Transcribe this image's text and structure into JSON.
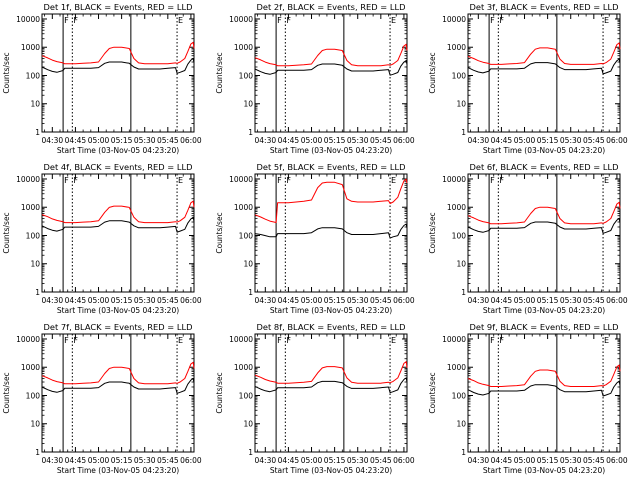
{
  "figure": {
    "time_labels": [
      "04:30",
      "04:45",
      "05:00",
      "05:15",
      "05:30",
      "05:45",
      "06:00"
    ],
    "time_minutes": [
      0,
      15,
      30,
      45,
      60,
      75,
      90
    ],
    "y_ticks": [
      1,
      10,
      100,
      1000,
      10000
    ],
    "y_tick_labels": [
      "1",
      "10",
      "100",
      "1000",
      "10000"
    ],
    "ylabel": "Counts/sec",
    "xlabel": "Start Time (03-Nov-05 04:23:20)",
    "solid_markers_min": [
      7,
      51
    ],
    "dotted_markers_min": [
      13,
      81
    ],
    "flag_markers": [
      {
        "min": 7,
        "label": "F"
      },
      {
        "min": 13,
        "label": "F"
      },
      {
        "min": 81,
        "label": "E"
      }
    ],
    "colors": {
      "events": "#000000",
      "lld": "#ff0000",
      "axes": "#000000"
    }
  },
  "chart_data": [
    {
      "type": "line",
      "title": "Det 1f, BLACK = Events, RED = LLD",
      "scale": 1.0,
      "xlim": [
        -6.7,
        92
      ],
      "ylim": [
        1,
        15000
      ],
      "yscale": "log",
      "x": [
        -6.7,
        -3,
        0,
        3,
        7,
        8,
        10,
        15,
        20,
        25,
        30,
        34,
        37,
        40,
        45,
        50,
        53,
        56,
        60,
        65,
        70,
        75,
        80,
        81,
        83,
        86,
        88,
        90,
        91.5,
        92
      ],
      "series": [
        {
          "name": "Events",
          "values": [
            200,
            160,
            140,
            130,
            150,
            180,
            180,
            180,
            180,
            180,
            190,
            270,
            300,
            300,
            300,
            270,
            200,
            170,
            170,
            170,
            170,
            180,
            190,
            120,
            130,
            150,
            250,
            350,
            400,
            280
          ]
        },
        {
          "name": "LLD",
          "values": [
            500,
            420,
            350,
            310,
            280,
            260,
            260,
            260,
            270,
            280,
            300,
            600,
            900,
            1000,
            1000,
            900,
            400,
            280,
            260,
            260,
            260,
            260,
            280,
            270,
            300,
            400,
            700,
            1300,
            1500,
            900
          ]
        }
      ]
    },
    {
      "type": "line",
      "title": "Det 2f, BLACK = Events, RED = LLD",
      "scale": 0.85,
      "xlim": [
        -6.7,
        92
      ],
      "ylim": [
        1,
        15000
      ],
      "yscale": "log",
      "x": [
        -6.7,
        -3,
        0,
        3,
        7,
        8,
        10,
        15,
        20,
        25,
        30,
        34,
        37,
        40,
        45,
        50,
        53,
        56,
        60,
        65,
        70,
        75,
        80,
        81,
        83,
        86,
        88,
        90,
        91.5,
        92
      ],
      "series": [
        {
          "name": "Events",
          "values": [
            200,
            160,
            140,
            130,
            150,
            180,
            180,
            180,
            180,
            180,
            190,
            270,
            300,
            300,
            300,
            270,
            200,
            170,
            170,
            170,
            170,
            180,
            190,
            120,
            130,
            150,
            250,
            350,
            400,
            280
          ]
        },
        {
          "name": "LLD",
          "values": [
            500,
            420,
            350,
            310,
            280,
            260,
            260,
            260,
            270,
            280,
            300,
            600,
            900,
            1000,
            1000,
            900,
            400,
            280,
            260,
            260,
            260,
            260,
            280,
            270,
            300,
            400,
            700,
            1300,
            1500,
            900
          ]
        }
      ]
    },
    {
      "type": "line",
      "title": "Det 3f, BLACK = Events, RED = LLD",
      "scale": 0.95,
      "xlim": [
        -6.7,
        92
      ],
      "ylim": [
        1,
        15000
      ],
      "yscale": "log",
      "x": [
        -6.7,
        -3,
        0,
        3,
        7,
        8,
        10,
        15,
        20,
        25,
        30,
        34,
        37,
        40,
        45,
        50,
        53,
        56,
        60,
        65,
        70,
        75,
        80,
        81,
        83,
        86,
        88,
        90,
        91.5,
        92
      ],
      "series": [
        {
          "name": "Events",
          "values": [
            200,
            160,
            140,
            130,
            150,
            180,
            180,
            180,
            180,
            180,
            190,
            270,
            300,
            300,
            300,
            270,
            200,
            170,
            170,
            170,
            170,
            180,
            190,
            120,
            130,
            150,
            250,
            350,
            400,
            280
          ]
        },
        {
          "name": "LLD",
          "values": [
            500,
            420,
            350,
            310,
            280,
            260,
            260,
            260,
            270,
            280,
            300,
            600,
            900,
            1000,
            1000,
            900,
            400,
            280,
            260,
            260,
            260,
            260,
            280,
            270,
            300,
            400,
            700,
            1300,
            1500,
            900
          ]
        }
      ]
    },
    {
      "type": "line",
      "title": "Det 4f, BLACK = Events, RED = LLD",
      "scale": 1.1,
      "xlim": [
        -6.7,
        92
      ],
      "ylim": [
        1,
        15000
      ],
      "yscale": "log",
      "x": [
        -6.7,
        -3,
        0,
        3,
        7,
        8,
        10,
        15,
        20,
        25,
        30,
        34,
        37,
        40,
        45,
        50,
        53,
        56,
        60,
        65,
        70,
        75,
        80,
        81,
        83,
        86,
        88,
        90,
        91.5,
        92
      ],
      "series": [
        {
          "name": "Events",
          "values": [
            200,
            160,
            140,
            130,
            150,
            180,
            180,
            180,
            180,
            180,
            190,
            270,
            300,
            300,
            300,
            270,
            200,
            170,
            170,
            170,
            170,
            180,
            190,
            120,
            130,
            150,
            250,
            350,
            400,
            280
          ]
        },
        {
          "name": "LLD",
          "values": [
            500,
            420,
            350,
            310,
            280,
            260,
            260,
            260,
            270,
            280,
            300,
            600,
            900,
            1000,
            1000,
            900,
            400,
            280,
            260,
            260,
            260,
            260,
            280,
            270,
            300,
            400,
            700,
            1300,
            1500,
            900
          ]
        }
      ]
    },
    {
      "type": "line",
      "title": "Det 5f, BLACK = Events, RED = LLD",
      "scale": 0.9,
      "xlim": [
        -6.7,
        92
      ],
      "ylim": [
        1,
        15000
      ],
      "yscale": "log",
      "x": [
        -6.7,
        -3,
        0,
        3,
        7,
        8,
        10,
        15,
        20,
        25,
        30,
        34,
        37,
        40,
        45,
        50,
        53,
        56,
        60,
        65,
        70,
        75,
        80,
        81,
        83,
        86,
        88,
        90,
        91.5,
        92
      ],
      "series": [
        {
          "name": "Events",
          "values": [
            130,
            120,
            110,
            100,
            100,
            130,
            130,
            130,
            130,
            130,
            140,
            190,
            210,
            210,
            210,
            190,
            140,
            120,
            120,
            120,
            120,
            130,
            140,
            90,
            100,
            110,
            180,
            250,
            280,
            200
          ]
        },
        {
          "name": "LLD",
          "values": [
            600,
            500,
            420,
            360,
            320,
            1600,
            1600,
            1600,
            1700,
            1800,
            2000,
            5500,
            8000,
            8500,
            8500,
            7000,
            2200,
            1800,
            1700,
            1700,
            1700,
            1800,
            1900,
            1500,
            1700,
            2500,
            5000,
            9500,
            11000,
            8000
          ]
        }
      ]
    },
    {
      "type": "line",
      "title": "Det 6f, BLACK = Events, RED = LLD",
      "scale": 1.0,
      "xlim": [
        -6.7,
        92
      ],
      "ylim": [
        1,
        15000
      ],
      "yscale": "log",
      "x": [
        -6.7,
        -3,
        0,
        3,
        7,
        8,
        10,
        15,
        20,
        25,
        30,
        34,
        37,
        40,
        45,
        50,
        53,
        56,
        60,
        65,
        70,
        75,
        80,
        81,
        83,
        86,
        88,
        90,
        91.5,
        92
      ],
      "series": [
        {
          "name": "Events",
          "values": [
            200,
            160,
            140,
            130,
            150,
            180,
            180,
            180,
            180,
            180,
            190,
            270,
            300,
            300,
            300,
            270,
            200,
            170,
            170,
            170,
            170,
            180,
            190,
            120,
            130,
            150,
            250,
            350,
            400,
            280
          ]
        },
        {
          "name": "LLD",
          "values": [
            500,
            420,
            350,
            310,
            280,
            260,
            260,
            260,
            270,
            280,
            300,
            600,
            900,
            1000,
            1000,
            900,
            400,
            280,
            260,
            260,
            260,
            260,
            280,
            270,
            300,
            400,
            700,
            1300,
            1500,
            900
          ]
        }
      ]
    },
    {
      "type": "line",
      "title": "Det 7f, BLACK = Events, RED = LLD",
      "scale": 1.0,
      "xlim": [
        -6.7,
        92
      ],
      "ylim": [
        1,
        15000
      ],
      "yscale": "log",
      "x": [
        -6.7,
        -3,
        0,
        3,
        7,
        8,
        10,
        15,
        20,
        25,
        30,
        34,
        37,
        40,
        45,
        50,
        53,
        56,
        60,
        65,
        70,
        75,
        80,
        81,
        83,
        86,
        88,
        90,
        91.5,
        92
      ],
      "series": [
        {
          "name": "Events",
          "values": [
            200,
            160,
            140,
            130,
            150,
            180,
            180,
            180,
            180,
            180,
            190,
            270,
            300,
            300,
            300,
            270,
            200,
            170,
            170,
            170,
            170,
            180,
            190,
            120,
            130,
            150,
            250,
            350,
            400,
            280
          ]
        },
        {
          "name": "LLD",
          "values": [
            500,
            420,
            350,
            310,
            280,
            260,
            260,
            260,
            270,
            280,
            300,
            600,
            900,
            1000,
            1000,
            900,
            400,
            280,
            260,
            260,
            260,
            260,
            280,
            270,
            300,
            400,
            700,
            1300,
            1500,
            900
          ]
        }
      ]
    },
    {
      "type": "line",
      "title": "Det 8f, BLACK = Events, RED = LLD",
      "scale": 1.05,
      "xlim": [
        -6.7,
        92
      ],
      "ylim": [
        1,
        15000
      ],
      "yscale": "log",
      "x": [
        -6.7,
        -3,
        0,
        3,
        7,
        8,
        10,
        15,
        20,
        25,
        30,
        34,
        37,
        40,
        45,
        50,
        53,
        56,
        60,
        65,
        70,
        75,
        80,
        81,
        83,
        86,
        88,
        90,
        91.5,
        92
      ],
      "series": [
        {
          "name": "Events",
          "values": [
            200,
            160,
            140,
            130,
            150,
            180,
            180,
            180,
            180,
            180,
            190,
            270,
            300,
            300,
            300,
            270,
            200,
            170,
            170,
            170,
            170,
            180,
            190,
            120,
            130,
            150,
            250,
            350,
            400,
            280
          ]
        },
        {
          "name": "LLD",
          "values": [
            500,
            420,
            350,
            310,
            280,
            260,
            260,
            260,
            270,
            280,
            300,
            600,
            900,
            1000,
            1000,
            900,
            400,
            280,
            260,
            260,
            260,
            260,
            280,
            270,
            300,
            400,
            700,
            1300,
            1500,
            900
          ]
        }
      ]
    },
    {
      "type": "line",
      "title": "Det 9f, BLACK = Events, RED = LLD",
      "scale": 0.8,
      "xlim": [
        -6.7,
        92
      ],
      "ylim": [
        1,
        15000
      ],
      "yscale": "log",
      "x": [
        -6.7,
        -3,
        0,
        3,
        7,
        8,
        10,
        15,
        20,
        25,
        30,
        34,
        37,
        40,
        45,
        50,
        53,
        56,
        60,
        65,
        70,
        75,
        80,
        81,
        83,
        86,
        88,
        90,
        91.5,
        92
      ],
      "series": [
        {
          "name": "Events",
          "values": [
            200,
            160,
            140,
            130,
            150,
            180,
            180,
            180,
            180,
            180,
            190,
            270,
            300,
            300,
            300,
            270,
            200,
            170,
            170,
            170,
            170,
            180,
            190,
            120,
            130,
            150,
            250,
            350,
            400,
            280
          ]
        },
        {
          "name": "LLD",
          "values": [
            500,
            420,
            350,
            310,
            280,
            260,
            260,
            260,
            270,
            280,
            300,
            600,
            900,
            1000,
            1000,
            900,
            400,
            280,
            260,
            260,
            260,
            260,
            280,
            270,
            300,
            400,
            700,
            1300,
            1500,
            900
          ]
        }
      ]
    }
  ]
}
